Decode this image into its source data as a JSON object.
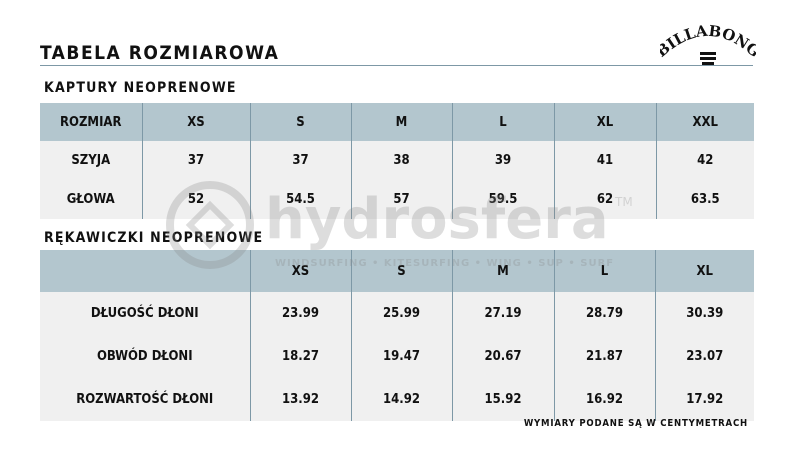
{
  "title": "TABELA ROZMIAROWA",
  "brand_logo": "BILLABONG",
  "watermark": {
    "name": "hydrosfera",
    "tm": "TM",
    "tagline": "WINDSURFING • KITESURFING • WING • SUP • SURF"
  },
  "hoods": {
    "heading": "KAPTURY NEOPRENOWE",
    "header": [
      "ROZMIAR",
      "XS",
      "S",
      "M",
      "L",
      "XL",
      "XXL"
    ],
    "rows": [
      [
        "SZYJA",
        "37",
        "37",
        "38",
        "39",
        "41",
        "42"
      ],
      [
        "GŁOWA",
        "52",
        "54.5",
        "57",
        "59.5",
        "62",
        "63.5"
      ]
    ]
  },
  "gloves": {
    "heading": "RĘKAWICZKI NEOPRENOWE",
    "header": [
      "",
      "XS",
      "S",
      "M",
      "L",
      "XL"
    ],
    "rows": [
      [
        "DŁUGOŚĆ DŁONI",
        "23.99",
        "25.99",
        "27.19",
        "28.79",
        "30.39"
      ],
      [
        "OBWÓD DŁONI",
        "18.27",
        "19.47",
        "20.67",
        "21.87",
        "23.07"
      ],
      [
        "ROZWARTOŚĆ DŁONI",
        "13.92",
        "14.92",
        "15.92",
        "16.92",
        "17.92"
      ]
    ]
  },
  "note": "WYMIARY PODANE SĄ W CENTYMETRACH",
  "colors": {
    "header_bg": "#b3c6ce",
    "body_bg": "#f0f0f0",
    "rule": "#7d98a6"
  }
}
